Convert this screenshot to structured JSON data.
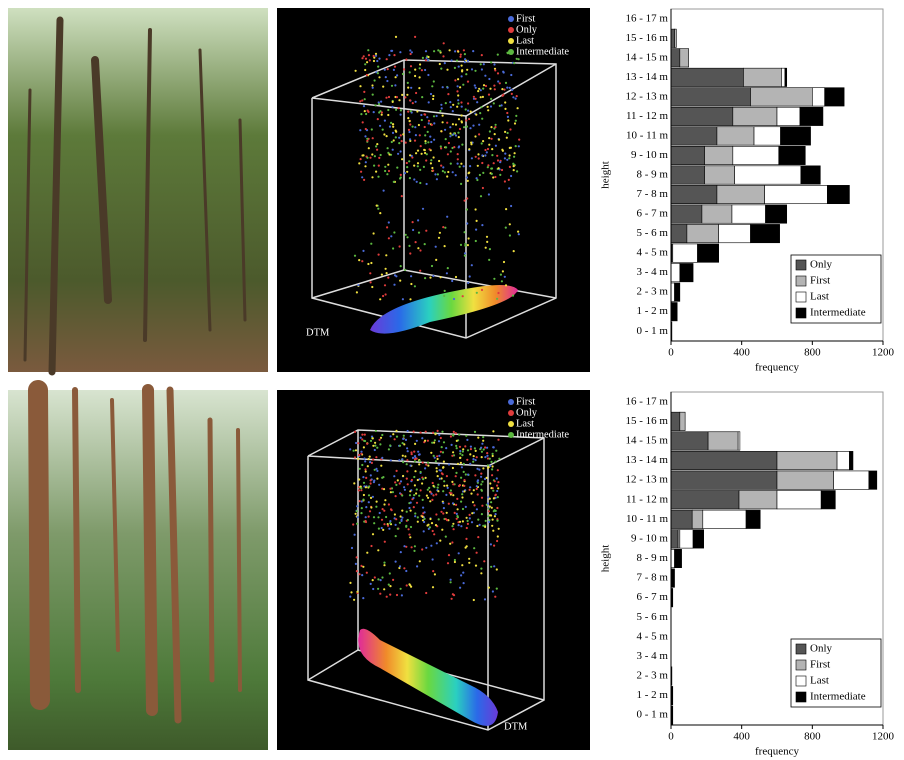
{
  "chart_data": [
    {
      "type": "bar",
      "orientation": "horizontal",
      "stacked": true,
      "categories": [
        "0 - 1 m",
        "1 - 2 m",
        "2 - 3 m",
        "3 - 4 m",
        "4 - 5 m",
        "5 - 6 m",
        "6 - 7 m",
        "7 - 8 m",
        "8 - 9 m",
        "9 - 10 m",
        "10 - 11 m",
        "11 - 12 m",
        "12 - 13 m",
        "13 - 14 m",
        "14 - 15 m",
        "15 - 16 m",
        "16 - 17 m"
      ],
      "series": [
        {
          "name": "Only",
          "color": "#555555",
          "values": [
            0,
            0,
            0,
            0,
            5,
            90,
            175,
            260,
            190,
            190,
            260,
            350,
            450,
            410,
            50,
            20,
            0
          ]
        },
        {
          "name": "First",
          "color": "#b4b4b4",
          "values": [
            0,
            0,
            0,
            0,
            5,
            180,
            170,
            270,
            170,
            160,
            210,
            250,
            350,
            215,
            50,
            10,
            0
          ]
        },
        {
          "name": "Last",
          "color": "#ffffff",
          "values": [
            0,
            5,
            20,
            50,
            140,
            180,
            190,
            355,
            375,
            260,
            150,
            130,
            70,
            20,
            0,
            0,
            0
          ]
        },
        {
          "name": "Intermediate",
          "color": "#000000",
          "values": [
            5,
            30,
            30,
            75,
            120,
            165,
            120,
            125,
            110,
            150,
            170,
            130,
            110,
            10,
            0,
            0,
            0
          ]
        }
      ],
      "xlim": [
        0,
        1200
      ],
      "xticks": [
        0,
        400,
        800,
        1200
      ],
      "xlabel": "frequency",
      "ylabel": "height",
      "legend": "lower right"
    },
    {
      "type": "bar",
      "orientation": "horizontal",
      "stacked": true,
      "categories": [
        "0 - 1 m",
        "1 - 2 m",
        "2 - 3 m",
        "3 - 4 m",
        "4 - 5 m",
        "5 - 6 m",
        "6 - 7 m",
        "7 - 8 m",
        "8 - 9 m",
        "9 - 10 m",
        "10 - 11 m",
        "11 - 12 m",
        "12 - 13 m",
        "13 - 14 m",
        "14 - 15 m",
        "15 - 16 m",
        "16 - 17 m"
      ],
      "series": [
        {
          "name": "Only",
          "color": "#555555",
          "values": [
            0,
            0,
            0,
            0,
            0,
            0,
            0,
            0,
            0,
            40,
            120,
            385,
            600,
            600,
            210,
            50,
            0
          ]
        },
        {
          "name": "First",
          "color": "#b4b4b4",
          "values": [
            0,
            0,
            0,
            0,
            0,
            0,
            0,
            0,
            0,
            10,
            60,
            215,
            320,
            340,
            170,
            30,
            0
          ]
        },
        {
          "name": "Last",
          "color": "#ffffff",
          "values": [
            0,
            0,
            0,
            0,
            0,
            0,
            0,
            5,
            20,
            75,
            245,
            250,
            200,
            70,
            10,
            0,
            0
          ]
        },
        {
          "name": "Intermediate",
          "color": "#000000",
          "values": [
            10,
            10,
            5,
            0,
            0,
            0,
            10,
            15,
            40,
            60,
            80,
            80,
            45,
            20,
            0,
            0,
            0
          ]
        }
      ],
      "xlim": [
        0,
        1200
      ],
      "xticks": [
        0,
        400,
        800,
        1200
      ],
      "xlabel": "frequency",
      "ylabel": "height",
      "legend": "lower right"
    }
  ],
  "point_clouds": [
    {
      "legend": [
        {
          "name": "First",
          "color": "#4a6ad8"
        },
        {
          "name": "Only",
          "color": "#e03c3c"
        },
        {
          "name": "Last",
          "color": "#f0e040"
        },
        {
          "name": "Intermediate",
          "color": "#5cb840"
        }
      ],
      "label": "DTM"
    },
    {
      "legend": [
        {
          "name": "First",
          "color": "#4a6ad8"
        },
        {
          "name": "Only",
          "color": "#e03c3c"
        },
        {
          "name": "Last",
          "color": "#f0e040"
        },
        {
          "name": "Intermediate",
          "color": "#5cb840"
        }
      ],
      "label": "DTM"
    }
  ]
}
